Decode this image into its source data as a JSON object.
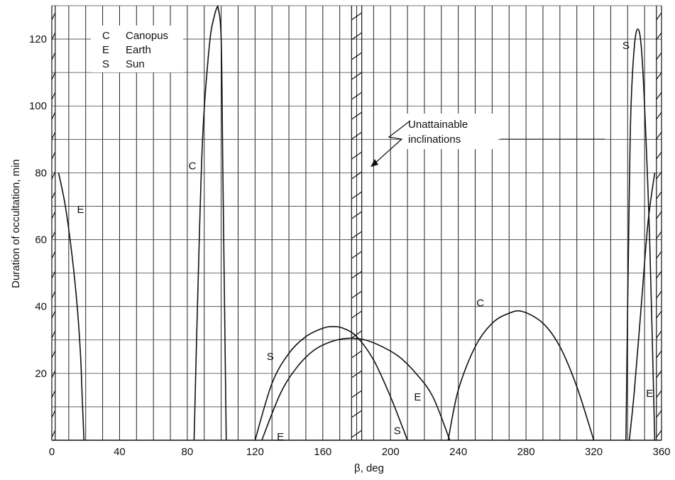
{
  "chart_data": {
    "type": "line",
    "title": "",
    "xlabel": "β, deg",
    "ylabel": "Duration of occultation, min",
    "xlim": [
      0,
      360
    ],
    "ylim": [
      0,
      130
    ],
    "x_ticks": [
      0,
      40,
      80,
      120,
      160,
      200,
      240,
      280,
      320,
      360
    ],
    "y_ticks": [
      20,
      40,
      60,
      80,
      100,
      120
    ],
    "grid": true,
    "legend": {
      "placement": "top-left",
      "entries": [
        {
          "key": "C",
          "label": "Canopus"
        },
        {
          "key": "E",
          "label": "Earth"
        },
        {
          "key": "S",
          "label": "Sun"
        }
      ]
    },
    "annotations": [
      {
        "text": "Unattainable",
        "x": 212,
        "y": 93
      },
      {
        "text": "inclinations",
        "x": 212,
        "y": 88
      }
    ],
    "unattainable_regions": [
      [
        0,
        2
      ],
      [
        177,
        183
      ],
      [
        357,
        360
      ]
    ],
    "series": [
      {
        "name": "E",
        "label_at": [
          17,
          68
        ],
        "points": [
          [
            4,
            80
          ],
          [
            8,
            70
          ],
          [
            12,
            55
          ],
          [
            15,
            40
          ],
          [
            17,
            25
          ],
          [
            18,
            12
          ],
          [
            19,
            0
          ]
        ]
      },
      {
        "name": "C",
        "label_at": [
          83,
          81
        ],
        "points": [
          [
            84,
            0
          ],
          [
            86,
            40
          ],
          [
            89,
            90
          ],
          [
            93,
            118
          ],
          [
            96,
            127
          ],
          [
            98,
            130
          ]
        ]
      },
      {
        "name": "C",
        "label_at": null,
        "points": [
          [
            98,
            130
          ],
          [
            100,
            120
          ],
          [
            101,
            80
          ],
          [
            102,
            40
          ],
          [
            103,
            0
          ]
        ]
      },
      {
        "name": "S",
        "label_at": [
          129,
          24
        ],
        "points": [
          [
            120,
            0
          ],
          [
            130,
            17
          ],
          [
            140,
            26
          ],
          [
            150,
            31
          ],
          [
            160,
            33.5
          ],
          [
            166,
            34
          ],
          [
            172,
            33.5
          ],
          [
            180,
            31
          ],
          [
            190,
            24
          ],
          [
            200,
            13
          ],
          [
            210,
            0
          ]
        ]
      },
      {
        "name": "E",
        "label_at": [
          135,
          0
        ],
        "points": [
          [
            124,
            0
          ],
          [
            135,
            14
          ],
          [
            145,
            22
          ],
          [
            155,
            27
          ],
          [
            165,
            29.5
          ],
          [
            175,
            30.5
          ],
          [
            185,
            30
          ],
          [
            195,
            28
          ],
          [
            205,
            25
          ],
          [
            215,
            20
          ],
          [
            225,
            13
          ],
          [
            235,
            0
          ]
        ]
      },
      {
        "name": "C",
        "label_at": [
          253,
          40
        ],
        "points": [
          [
            234,
            0
          ],
          [
            240,
            15
          ],
          [
            250,
            28
          ],
          [
            260,
            35
          ],
          [
            270,
            38
          ],
          [
            278,
            38.5
          ],
          [
            290,
            35
          ],
          [
            300,
            28
          ],
          [
            310,
            16
          ],
          [
            320,
            0
          ]
        ]
      },
      {
        "name": "S",
        "label_at": [
          339,
          117
        ],
        "points": [
          [
            339,
            0
          ],
          [
            340,
            40
          ],
          [
            341,
            75
          ],
          [
            342,
            100
          ],
          [
            344,
            118
          ],
          [
            346,
            123
          ],
          [
            348,
            118
          ],
          [
            350,
            100
          ],
          [
            353,
            60
          ],
          [
            356,
            0
          ]
        ]
      },
      {
        "name": "E",
        "label_at": [
          353,
          13
        ],
        "points": [
          [
            341,
            0
          ],
          [
            344,
            15
          ],
          [
            348,
            40
          ],
          [
            352,
            65
          ],
          [
            356,
            80
          ]
        ]
      }
    ],
    "extra_labels": [
      {
        "text": "E",
        "x": 216,
        "y": 11
      },
      {
        "text": "S",
        "x": 204,
        "y": 1
      }
    ]
  }
}
